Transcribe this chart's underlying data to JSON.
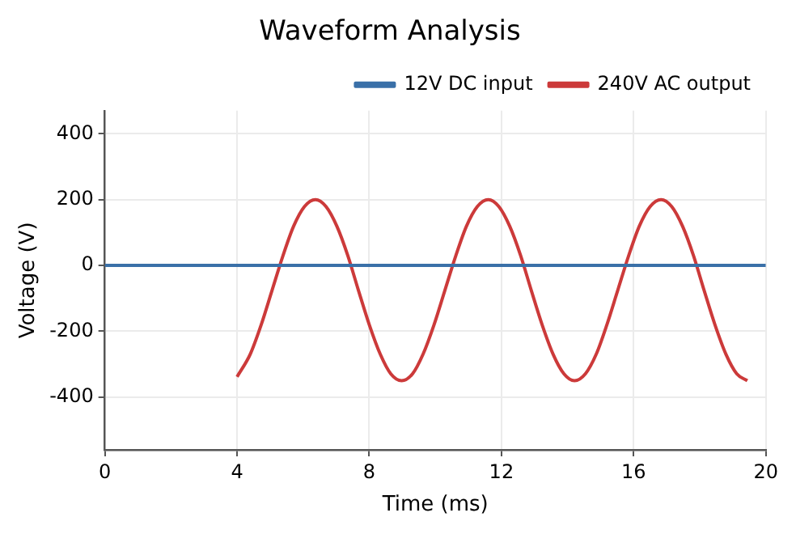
{
  "chart_data": {
    "type": "line",
    "title": "Waveform Analysis",
    "xlabel": "Time (ms)",
    "ylabel": "Voltage (V)",
    "xlim": [
      0,
      20
    ],
    "xticks": [
      0,
      4,
      8,
      12,
      16,
      20
    ],
    "ylim": [
      -560,
      470
    ],
    "yticks": [
      -400,
      -200,
      0,
      200,
      400
    ],
    "grid": true,
    "legend": "top right",
    "marker": "none",
    "line_style": "solid",
    "series": [
      {
        "name": "12V DC input",
        "color": "#3a70a8",
        "x": [
          0,
          20
        ],
        "values": [
          0,
          0
        ]
      },
      {
        "name": "240V AC output",
        "color": "#cc3a3a",
        "x": [
          4.0,
          4.4,
          4.73,
          5.06,
          5.39,
          5.71,
          6.04,
          6.37,
          6.69,
          7.02,
          7.35,
          7.67,
          8.0,
          8.33,
          8.65,
          8.98,
          9.31,
          9.63,
          9.96,
          10.29,
          10.62,
          10.94,
          11.27,
          11.6,
          11.92,
          12.25,
          12.58,
          12.9,
          13.23,
          13.56,
          13.89,
          14.21,
          14.54,
          14.87,
          15.19,
          15.52,
          15.85,
          16.17,
          16.5,
          16.83,
          17.15,
          17.48,
          17.81,
          18.13,
          18.46,
          18.79,
          19.12,
          19.44
        ],
        "values": [
          -338,
          -269,
          -180,
          -75,
          30,
          119,
          179,
          200,
          179,
          119,
          30,
          -75,
          -180,
          -269,
          -329,
          -350,
          -329,
          -269,
          -180,
          -75,
          30,
          119,
          179,
          200,
          179,
          119,
          30,
          -75,
          -180,
          -269,
          -329,
          -350,
          -329,
          -269,
          -180,
          -75,
          30,
          119,
          179,
          200,
          179,
          119,
          30,
          -75,
          -180,
          -269,
          -329,
          -350
        ]
      }
    ]
  }
}
